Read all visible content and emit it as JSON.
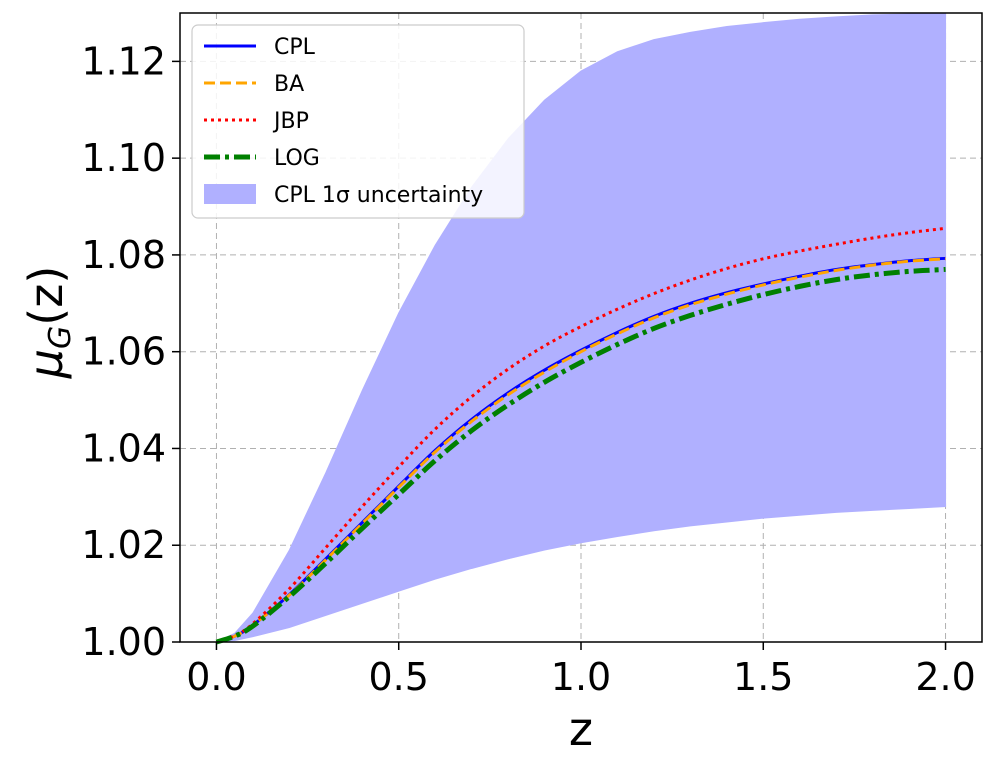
{
  "chart_data": {
    "type": "line",
    "title": "",
    "xlabel": "z",
    "ylabel_main": "μ",
    "ylabel_sub": "G",
    "ylabel_arg": "(z)",
    "xlim": [
      -0.1,
      2.1
    ],
    "ylim": [
      1.0,
      1.13
    ],
    "xticks": [
      0.0,
      0.5,
      1.0,
      1.5,
      2.0
    ],
    "xtick_labels": [
      "0.0",
      "0.5",
      "1.0",
      "1.5",
      "2.0"
    ],
    "yticks": [
      1.0,
      1.02,
      1.04,
      1.06,
      1.08,
      1.1,
      1.12
    ],
    "ytick_labels": [
      "1.00",
      "1.02",
      "1.04",
      "1.06",
      "1.08",
      "1.10",
      "1.12"
    ],
    "grid": true,
    "legend_position": "top-left",
    "x": [
      0.0,
      0.05,
      0.1,
      0.2,
      0.3,
      0.4,
      0.5,
      0.6,
      0.7,
      0.8,
      0.9,
      1.0,
      1.1,
      1.2,
      1.3,
      1.4,
      1.5,
      1.6,
      1.7,
      1.8,
      1.9,
      2.0
    ],
    "series": [
      {
        "name": "CPL",
        "color": "#0000ff",
        "dash": "solid",
        "width": 3,
        "values": [
          1.0,
          1.0012,
          1.0035,
          1.0098,
          1.0172,
          1.0247,
          1.0322,
          1.0396,
          1.046,
          1.0515,
          1.0562,
          1.0603,
          1.064,
          1.0673,
          1.07,
          1.0722,
          1.074,
          1.0756,
          1.077,
          1.078,
          1.0788,
          1.0793
        ]
      },
      {
        "name": "BA",
        "color": "#ffa500",
        "dash": "dashed",
        "width": 3,
        "values": [
          1.0,
          1.0012,
          1.0035,
          1.0097,
          1.017,
          1.0245,
          1.032,
          1.0393,
          1.0456,
          1.0511,
          1.0558,
          1.06,
          1.0637,
          1.067,
          1.0697,
          1.0719,
          1.0738,
          1.0754,
          1.0768,
          1.0779,
          1.0787,
          1.0792
        ]
      },
      {
        "name": "JBP",
        "color": "#ff0000",
        "dash": "dotted",
        "width": 3,
        "values": [
          1.0,
          1.0013,
          1.0038,
          1.011,
          1.0195,
          1.028,
          1.0362,
          1.044,
          1.0507,
          1.0564,
          1.0612,
          1.0652,
          1.0688,
          1.072,
          1.0748,
          1.0772,
          1.0792,
          1.0808,
          1.0822,
          1.0835,
          1.0846,
          1.0855
        ]
      },
      {
        "name": "LOG",
        "color": "#008000",
        "dash": "dashdot",
        "width": 5,
        "values": [
          1.0,
          1.0012,
          1.0033,
          1.0094,
          1.0163,
          1.0235,
          1.0305,
          1.0375,
          1.0437,
          1.049,
          1.0537,
          1.0578,
          1.0615,
          1.0648,
          1.0675,
          1.0698,
          1.0718,
          1.0735,
          1.0749,
          1.0759,
          1.0766,
          1.077
        ]
      }
    ],
    "band": {
      "name": "CPL 1σ uncertainty",
      "color": "#b0b0ff",
      "upper": [
        1.0,
        1.0018,
        1.006,
        1.019,
        1.035,
        1.052,
        1.068,
        1.082,
        1.094,
        1.104,
        1.112,
        1.118,
        1.122,
        1.1245,
        1.126,
        1.1272,
        1.128,
        1.1287,
        1.1292,
        1.1296,
        1.1298,
        1.13
      ],
      "lower": [
        1.0,
        1.0003,
        1.0011,
        1.003,
        1.0055,
        1.008,
        1.0105,
        1.013,
        1.0152,
        1.0172,
        1.019,
        1.0205,
        1.0218,
        1.023,
        1.024,
        1.0248,
        1.0256,
        1.0262,
        1.0268,
        1.0272,
        1.0276,
        1.028
      ]
    },
    "legend": {
      "entries": [
        "CPL",
        "BA",
        "JBP",
        "LOG",
        "CPL 1σ uncertainty"
      ]
    }
  }
}
